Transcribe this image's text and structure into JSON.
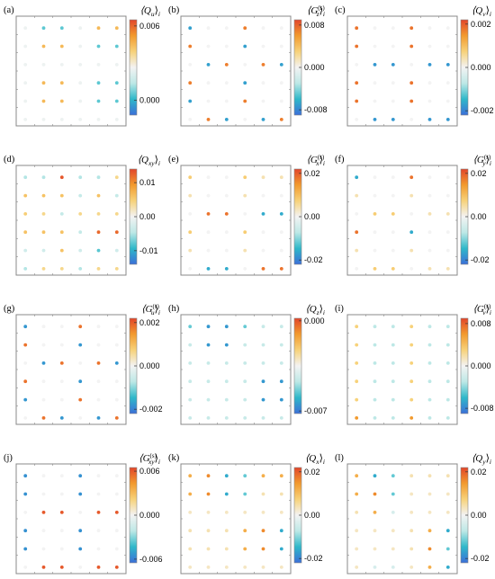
{
  "colors": {
    "scale": [
      "#3b6fd8",
      "#2fb8c9",
      "#bde8e6",
      "#f3f3f3",
      "#f7d27a",
      "#f29a2e",
      "#e2452a"
    ],
    "frame": "#888888"
  },
  "chart_data": [
    {
      "id": "a",
      "label": "(a)",
      "type": "scatter",
      "title": "⟨Q_u⟩_i",
      "cbar_ticks": [
        "0.006",
        "0.000"
      ],
      "cbar_range": [
        -0.0012,
        0.0065
      ],
      "grid": "6x6",
      "values": [
        [
          0.0025,
          0.0005,
          0.0005,
          0.0025,
          0.0045,
          0.0045
        ],
        [
          0.0025,
          0.0045,
          0.0045,
          0.0025,
          0.0005,
          0.0005
        ],
        [
          0.0025,
          0.0025,
          0.0025,
          0.0025,
          0.0025,
          0.0025
        ],
        [
          0.0025,
          0.0045,
          0.0045,
          0.0025,
          0.0005,
          0.0005
        ],
        [
          0.0025,
          0.0045,
          0.0045,
          0.0025,
          0.0005,
          0.0005
        ],
        [
          0.0025,
          0.0025,
          0.0025,
          0.0025,
          0.0025,
          0.0025
        ]
      ]
    },
    {
      "id": "b",
      "label": "(b)",
      "type": "scatter",
      "title": "⟨G_z^(s)⟩_i",
      "cbar_ticks": [
        "0.008",
        "0.000",
        "-0.008"
      ],
      "cbar_range": [
        -0.009,
        0.009
      ],
      "grid": "6x6",
      "values": [
        [
          -0.007,
          0,
          0,
          0.007,
          0,
          0
        ],
        [
          0.007,
          0,
          0,
          -0.007,
          0,
          0
        ],
        [
          0,
          -0.007,
          0.007,
          0,
          0.007,
          -0.007
        ],
        [
          0.007,
          0,
          0,
          -0.007,
          0,
          0
        ],
        [
          -0.007,
          0,
          0,
          0.007,
          0,
          0
        ],
        [
          0,
          0.007,
          -0.007,
          0,
          -0.007,
          0.007
        ]
      ]
    },
    {
      "id": "c",
      "label": "(c)",
      "type": "scatter",
      "title": "⟨Q_v⟩_i",
      "cbar_ticks": [
        "0.002",
        "0.000",
        "-0.002"
      ],
      "cbar_range": [
        -0.0022,
        0.0022
      ],
      "grid": "6x6",
      "values": [
        [
          0.0018,
          0,
          0,
          0.0018,
          0,
          0
        ],
        [
          0.0018,
          0,
          0,
          0.0018,
          0,
          0
        ],
        [
          0,
          -0.0018,
          -0.0018,
          0,
          -0.0018,
          -0.0018
        ],
        [
          0.0018,
          0,
          0,
          0.0018,
          0,
          0
        ],
        [
          0.0018,
          0,
          0,
          0.0018,
          0,
          0
        ],
        [
          0,
          -0.0018,
          -0.0018,
          0,
          -0.0018,
          -0.0018
        ]
      ]
    },
    {
      "id": "d",
      "label": "(d)",
      "type": "scatter",
      "title": "⟨Q_xy⟩_i",
      "cbar_ticks": [
        "0.01",
        "0.00",
        "-0.01"
      ],
      "cbar_range": [
        -0.014,
        0.014
      ],
      "grid": "6x6",
      "values": [
        [
          -0.005,
          -0.005,
          0.013,
          -0.005,
          -0.005,
          0.004
        ],
        [
          0.006,
          0.006,
          0.006,
          -0.004,
          0.006,
          -0.004
        ],
        [
          0.005,
          0.004,
          -0.004,
          0.004,
          0.004,
          0.004
        ],
        [
          0.006,
          0.006,
          0.006,
          -0.004,
          0.012,
          0.012
        ],
        [
          -0.003,
          -0.003,
          0.006,
          -0.003,
          -0.008,
          -0.003
        ],
        [
          -0.005,
          0.004,
          0.004,
          -0.005,
          0.004,
          0.004
        ]
      ]
    },
    {
      "id": "e",
      "label": "(e)",
      "type": "scatter",
      "title": "⟨G_x^(s)⟩_i",
      "cbar_ticks": [
        "0.02",
        "0.00",
        "-0.02"
      ],
      "cbar_range": [
        -0.022,
        0.022
      ],
      "grid": "6x6",
      "values": [
        [
          0.008,
          0,
          0,
          0.008,
          0.004,
          0.004
        ],
        [
          0.004,
          0,
          0,
          0.004,
          0,
          0
        ],
        [
          0,
          0.018,
          0.018,
          0,
          -0.016,
          -0.016
        ],
        [
          0.008,
          0,
          0,
          0.008,
          0,
          0
        ],
        [
          0.004,
          0,
          0,
          0.004,
          0,
          0
        ],
        [
          0,
          -0.016,
          -0.016,
          0,
          0.018,
          0.018
        ]
      ]
    },
    {
      "id": "f",
      "label": "(f)",
      "type": "scatter",
      "title": "⟨G_y^(s)⟩_i",
      "cbar_ticks": [
        "0.02",
        "0.00",
        "-0.02"
      ],
      "cbar_range": [
        -0.022,
        0.022
      ],
      "grid": "6x6",
      "values": [
        [
          -0.016,
          0,
          0,
          0.018,
          0,
          0
        ],
        [
          0.004,
          0,
          0,
          0.004,
          0,
          0
        ],
        [
          0,
          0.008,
          0.008,
          0,
          0.004,
          0.004
        ],
        [
          0.018,
          0,
          0,
          -0.016,
          0,
          0
        ],
        [
          0.004,
          0,
          0,
          0.004,
          0,
          0
        ],
        [
          0,
          0.008,
          0.008,
          0,
          0.004,
          0.004
        ]
      ]
    },
    {
      "id": "g",
      "label": "(g)",
      "type": "scatter",
      "title": "⟨G_u^(s)⟩_i",
      "cbar_ticks": [
        "0.002",
        "0.000",
        "-0.002"
      ],
      "cbar_range": [
        -0.0022,
        0.0022
      ],
      "grid": "6x6",
      "values": [
        [
          -0.0018,
          0,
          0,
          0.0018,
          0,
          0
        ],
        [
          0.0018,
          0,
          0,
          -0.0018,
          0,
          0
        ],
        [
          0,
          -0.0018,
          0.0018,
          0,
          0.0018,
          -0.0018
        ],
        [
          0.0018,
          0,
          0,
          -0.0018,
          0,
          0
        ],
        [
          -0.0018,
          0,
          0,
          0.0018,
          0,
          0
        ],
        [
          0,
          0.0018,
          -0.0018,
          0,
          -0.0018,
          0.0018
        ]
      ]
    },
    {
      "id": "h",
      "label": "(h)",
      "type": "scatter",
      "title": "⟨Q_z⟩_i",
      "cbar_ticks": [
        "0.000",
        "-0.007"
      ],
      "cbar_range": [
        -0.0072,
        0.0002
      ],
      "grid": "6x6",
      "values": [
        [
          -0.0055,
          -0.0065,
          -0.0065,
          -0.0055,
          -0.0045,
          -0.0045
        ],
        [
          -0.0045,
          -0.0065,
          -0.0065,
          -0.0045,
          -0.0045,
          -0.0045
        ],
        [
          -0.0045,
          -0.0045,
          -0.0045,
          -0.0045,
          -0.0045,
          -0.0045
        ],
        [
          -0.0045,
          -0.0045,
          -0.0045,
          -0.0045,
          -0.0065,
          -0.0065
        ],
        [
          -0.0045,
          -0.0045,
          -0.0045,
          -0.0045,
          -0.0065,
          -0.0065
        ],
        [
          -0.0045,
          -0.0045,
          -0.0045,
          -0.0045,
          -0.0045,
          -0.0045
        ]
      ]
    },
    {
      "id": "i",
      "label": "(i)",
      "type": "scatter",
      "title": "⟨G_v^(s)⟩_i",
      "cbar_ticks": [
        "0.008",
        "0.000",
        "-0.008"
      ],
      "cbar_range": [
        -0.009,
        0.009
      ],
      "grid": "6x6",
      "values": [
        [
          0.003,
          -0.003,
          -0.003,
          0.003,
          -0.003,
          -0.003
        ],
        [
          0.003,
          -0.003,
          -0.003,
          0.003,
          -0.003,
          -0.003
        ],
        [
          0.003,
          -0.003,
          -0.003,
          0.003,
          -0.003,
          -0.003
        ],
        [
          0.003,
          -0.003,
          -0.003,
          0.003,
          -0.003,
          -0.003
        ],
        [
          0.003,
          -0.003,
          -0.003,
          0.003,
          -0.003,
          -0.003
        ],
        [
          0.006,
          -0.003,
          -0.003,
          0.006,
          -0.003,
          -0.003
        ]
      ]
    },
    {
      "id": "j",
      "label": "(j)",
      "type": "scatter",
      "title": "⟨G_xy^(s)⟩_i",
      "cbar_ticks": [
        "0.006",
        "0.000",
        "-0.006"
      ],
      "cbar_range": [
        -0.0065,
        0.0065
      ],
      "grid": "6x6",
      "values": [
        [
          -0.0055,
          0,
          0,
          -0.0055,
          0,
          0
        ],
        [
          -0.0055,
          0,
          0,
          -0.0055,
          0,
          0
        ],
        [
          0,
          0.006,
          0.006,
          0,
          0.006,
          0.006
        ],
        [
          -0.0055,
          0,
          0,
          -0.0055,
          0,
          0
        ],
        [
          -0.0055,
          0,
          0,
          -0.0055,
          0,
          0
        ],
        [
          0,
          0.006,
          0.006,
          0,
          0.006,
          0.006
        ]
      ]
    },
    {
      "id": "k",
      "label": "(k)",
      "type": "scatter",
      "title": "⟨Q_x⟩_i",
      "cbar_ticks": [
        "0.02",
        "0.00",
        "-0.02"
      ],
      "cbar_range": [
        -0.022,
        0.022
      ],
      "grid": "6x6",
      "values": [
        [
          0.012,
          0.016,
          -0.016,
          -0.012,
          0.012,
          0.012
        ],
        [
          0.012,
          0.016,
          -0.016,
          -0.012,
          0.004,
          0.004
        ],
        [
          0.003,
          0.003,
          0.003,
          0.003,
          0.003,
          0.003
        ],
        [
          0.004,
          0.004,
          0.004,
          0.012,
          0.016,
          -0.016
        ],
        [
          0.004,
          0.004,
          0.004,
          0.012,
          0.016,
          -0.016
        ],
        [
          0.003,
          0.003,
          0.003,
          0.003,
          0.003,
          0.003
        ]
      ]
    },
    {
      "id": "l",
      "label": "(l)",
      "type": "scatter",
      "title": "⟨Q_y⟩_i",
      "cbar_ticks": [
        "0.02",
        "0.00",
        "-0.02"
      ],
      "cbar_range": [
        -0.022,
        0.022
      ],
      "grid": "6x6",
      "values": [
        [
          0.012,
          -0.016,
          -0.012,
          0.004,
          0.004,
          0.004
        ],
        [
          0.012,
          0.016,
          -0.012,
          0.003,
          0.003,
          0.003
        ],
        [
          0.004,
          0.012,
          -0.004,
          0.003,
          0.003,
          0.003
        ],
        [
          0.003,
          0.003,
          0.003,
          0.004,
          0.012,
          -0.016
        ],
        [
          0.003,
          0.003,
          0.003,
          0.004,
          0.016,
          -0.012
        ],
        [
          0.003,
          -0.004,
          -0.004,
          0.003,
          0.012,
          -0.016
        ]
      ]
    }
  ]
}
